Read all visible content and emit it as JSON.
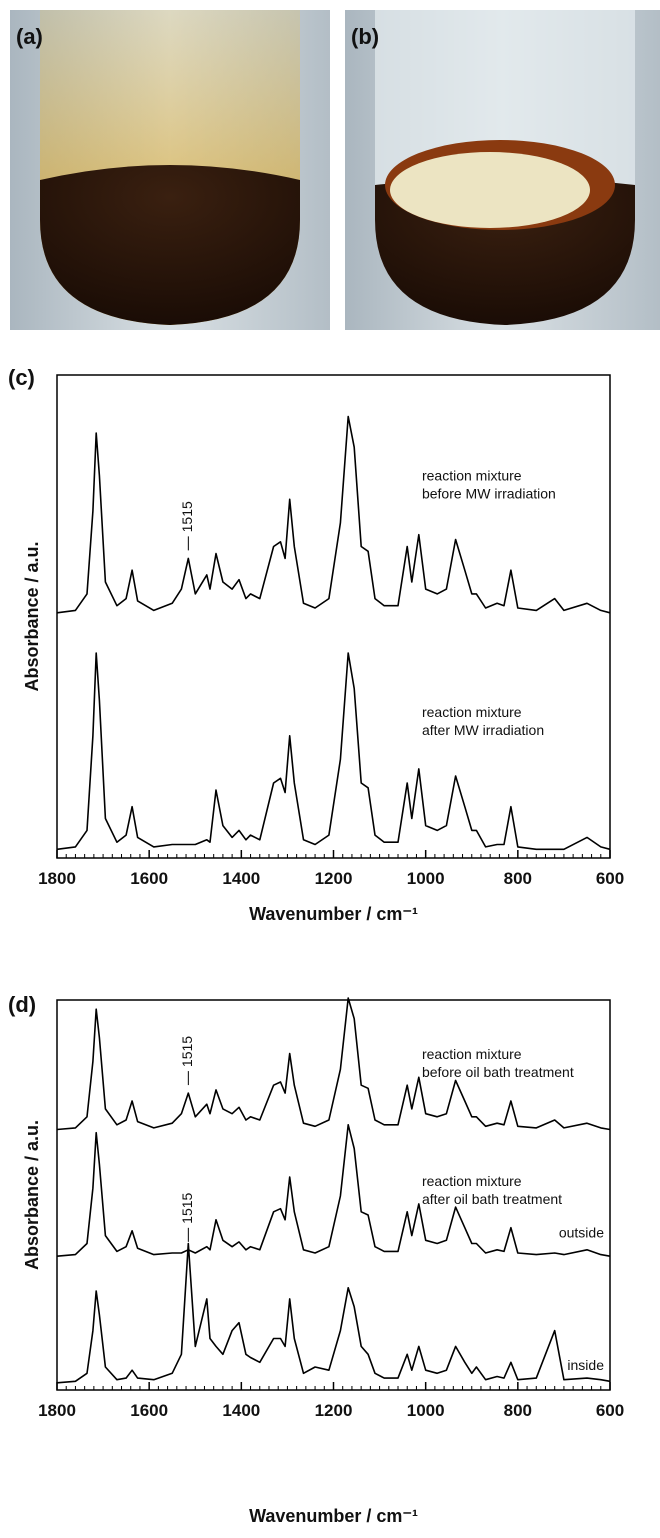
{
  "photos": [
    {
      "label": "(a)"
    },
    {
      "label": "(b)"
    }
  ],
  "chart_data": [
    {
      "type": "line",
      "panel": "(c)",
      "xlabel": "Wavenumber / cm⁻¹",
      "ylabel": "Absorbance / a.u.",
      "xlim": [
        1800,
        600
      ],
      "xticks": [
        1800,
        1600,
        1400,
        1200,
        1000,
        800,
        600
      ],
      "ylim": [
        0,
        1
      ],
      "x": [
        1800,
        1760,
        1735,
        1722,
        1715,
        1708,
        1695,
        1670,
        1650,
        1637,
        1625,
        1590,
        1550,
        1530,
        1515,
        1500,
        1475,
        1468,
        1455,
        1440,
        1420,
        1405,
        1390,
        1380,
        1360,
        1330,
        1315,
        1305,
        1295,
        1285,
        1265,
        1240,
        1210,
        1185,
        1168,
        1155,
        1140,
        1125,
        1110,
        1090,
        1060,
        1040,
        1030,
        1015,
        1000,
        975,
        955,
        935,
        915,
        900,
        890,
        870,
        845,
        830,
        815,
        800,
        760,
        720,
        700,
        650,
        620,
        600
      ],
      "series": [
        {
          "name": [
            "reaction mixture",
            "before MW irradiation"
          ],
          "color": "#000000",
          "values": [
            0.02,
            0.03,
            0.1,
            0.45,
            0.78,
            0.6,
            0.15,
            0.05,
            0.08,
            0.2,
            0.07,
            0.03,
            0.06,
            0.12,
            0.25,
            0.1,
            0.18,
            0.12,
            0.27,
            0.15,
            0.12,
            0.16,
            0.08,
            0.1,
            0.08,
            0.3,
            0.32,
            0.25,
            0.5,
            0.3,
            0.06,
            0.04,
            0.08,
            0.4,
            0.85,
            0.72,
            0.3,
            0.28,
            0.08,
            0.05,
            0.05,
            0.3,
            0.15,
            0.35,
            0.12,
            0.1,
            0.12,
            0.33,
            0.2,
            0.1,
            0.1,
            0.04,
            0.06,
            0.05,
            0.2,
            0.04,
            0.03,
            0.08,
            0.03,
            0.06,
            0.03,
            0.02
          ]
        },
        {
          "name": [
            "reaction mixture",
            "after MW irradiation"
          ],
          "color": "#000000",
          "values": [
            0.02,
            0.03,
            0.1,
            0.5,
            0.85,
            0.65,
            0.15,
            0.05,
            0.08,
            0.2,
            0.07,
            0.03,
            0.04,
            0.04,
            0.04,
            0.04,
            0.06,
            0.05,
            0.27,
            0.12,
            0.07,
            0.1,
            0.06,
            0.08,
            0.06,
            0.3,
            0.32,
            0.26,
            0.5,
            0.3,
            0.06,
            0.04,
            0.08,
            0.4,
            0.85,
            0.7,
            0.3,
            0.28,
            0.08,
            0.05,
            0.05,
            0.3,
            0.15,
            0.36,
            0.12,
            0.1,
            0.12,
            0.33,
            0.2,
            0.1,
            0.1,
            0.03,
            0.04,
            0.04,
            0.2,
            0.03,
            0.02,
            0.02,
            0.02,
            0.07,
            0.03,
            0.02
          ]
        }
      ],
      "annotations": [
        {
          "text": "1515",
          "x": 1515,
          "series": 0
        }
      ]
    },
    {
      "type": "line",
      "panel": "(d)",
      "xlabel": "Wavenumber / cm⁻¹",
      "ylabel": "Absorbance / a.u.",
      "xlim": [
        1800,
        600
      ],
      "xticks": [
        1800,
        1600,
        1400,
        1200,
        1000,
        800,
        600
      ],
      "ylim": [
        0,
        0.8
      ],
      "x": [
        1800,
        1760,
        1735,
        1722,
        1715,
        1708,
        1695,
        1670,
        1650,
        1637,
        1625,
        1590,
        1550,
        1530,
        1515,
        1500,
        1475,
        1468,
        1455,
        1440,
        1420,
        1405,
        1390,
        1380,
        1360,
        1330,
        1315,
        1305,
        1295,
        1285,
        1265,
        1240,
        1210,
        1185,
        1168,
        1155,
        1140,
        1125,
        1110,
        1090,
        1060,
        1040,
        1030,
        1015,
        1000,
        975,
        955,
        935,
        915,
        900,
        890,
        870,
        845,
        830,
        815,
        800,
        760,
        720,
        700,
        650,
        620,
        600
      ],
      "series": [
        {
          "name": [
            "reaction mixture",
            "before oil bath treatment"
          ],
          "color": "#000000",
          "values": [
            0.02,
            0.03,
            0.1,
            0.45,
            0.78,
            0.6,
            0.15,
            0.05,
            0.08,
            0.2,
            0.07,
            0.03,
            0.06,
            0.12,
            0.25,
            0.1,
            0.18,
            0.12,
            0.27,
            0.15,
            0.12,
            0.16,
            0.08,
            0.1,
            0.08,
            0.3,
            0.32,
            0.25,
            0.5,
            0.3,
            0.06,
            0.04,
            0.08,
            0.4,
            0.85,
            0.72,
            0.3,
            0.28,
            0.08,
            0.05,
            0.05,
            0.3,
            0.15,
            0.35,
            0.12,
            0.1,
            0.12,
            0.33,
            0.2,
            0.1,
            0.1,
            0.04,
            0.06,
            0.05,
            0.2,
            0.04,
            0.03,
            0.08,
            0.03,
            0.06,
            0.03,
            0.02
          ]
        },
        {
          "name": [
            "reaction mixture",
            "after oil bath treatment"
          ],
          "note": "outside",
          "color": "#000000",
          "values": [
            0.02,
            0.03,
            0.1,
            0.45,
            0.8,
            0.6,
            0.15,
            0.05,
            0.08,
            0.18,
            0.07,
            0.03,
            0.04,
            0.04,
            0.06,
            0.04,
            0.08,
            0.06,
            0.25,
            0.12,
            0.08,
            0.11,
            0.06,
            0.08,
            0.06,
            0.3,
            0.32,
            0.25,
            0.52,
            0.3,
            0.06,
            0.04,
            0.08,
            0.4,
            0.85,
            0.7,
            0.3,
            0.28,
            0.08,
            0.05,
            0.05,
            0.3,
            0.15,
            0.35,
            0.12,
            0.1,
            0.12,
            0.33,
            0.2,
            0.1,
            0.1,
            0.04,
            0.06,
            0.05,
            0.2,
            0.04,
            0.03,
            0.04,
            0.03,
            0.06,
            0.03,
            0.02
          ]
        },
        {
          "name": [
            "inside"
          ],
          "color": "#000000",
          "values": [
            0.02,
            0.03,
            0.08,
            0.35,
            0.6,
            0.45,
            0.12,
            0.04,
            0.05,
            0.1,
            0.05,
            0.04,
            0.08,
            0.2,
            0.9,
            0.25,
            0.55,
            0.3,
            0.25,
            0.2,
            0.35,
            0.4,
            0.2,
            0.18,
            0.15,
            0.3,
            0.3,
            0.25,
            0.55,
            0.3,
            0.08,
            0.12,
            0.1,
            0.35,
            0.62,
            0.5,
            0.25,
            0.2,
            0.08,
            0.05,
            0.05,
            0.2,
            0.1,
            0.25,
            0.1,
            0.08,
            0.1,
            0.25,
            0.15,
            0.08,
            0.12,
            0.04,
            0.06,
            0.05,
            0.15,
            0.04,
            0.05,
            0.35,
            0.04,
            0.05,
            0.04,
            0.03
          ]
        }
      ],
      "annotations": [
        {
          "text": "1515",
          "x": 1515,
          "series": 0
        },
        {
          "text": "1515",
          "x": 1515,
          "series": 1
        }
      ]
    }
  ]
}
